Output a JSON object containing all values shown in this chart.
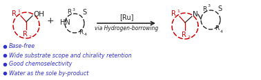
{
  "bullet_points": [
    "Base-free",
    "Wide substrate scope and chirality retention",
    "Good chemoselectivity",
    "Water as the sole by-product"
  ],
  "bullet_color": "#3333cc",
  "arrow_label_top": "[Ru]",
  "arrow_label_bottom": "via Hydrogen-borrowing",
  "red_color": "#cc0000",
  "black_color": "#222222",
  "bg_color": "#ffffff",
  "figsize": [
    3.78,
    1.17
  ],
  "dpi": 100
}
